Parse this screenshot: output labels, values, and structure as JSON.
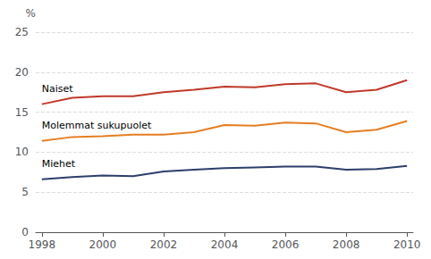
{
  "chart_data": {
    "type": "line",
    "ylabel": "%",
    "x": [
      1998,
      1999,
      2000,
      2001,
      2002,
      2003,
      2004,
      2005,
      2006,
      2007,
      2008,
      2009,
      2010
    ],
    "series": [
      {
        "name": "Naiset",
        "color": "#c0392b",
        "values": [
          16.0,
          16.8,
          17.0,
          17.0,
          17.5,
          17.8,
          18.2,
          18.1,
          18.5,
          18.6,
          17.5,
          17.8,
          19.0
        ]
      },
      {
        "name": "Molemmat sukupuolet",
        "color": "#e67e22",
        "values": [
          11.4,
          11.9,
          12.0,
          12.2,
          12.2,
          12.5,
          13.4,
          13.3,
          13.7,
          13.6,
          12.5,
          12.8,
          13.9
        ]
      },
      {
        "name": "Miehet",
        "color": "#2c3e6b",
        "values": [
          6.6,
          6.9,
          7.1,
          7.0,
          7.6,
          7.8,
          8.0,
          8.1,
          8.2,
          8.2,
          7.8,
          7.9,
          8.3
        ]
      }
    ],
    "xlim": [
      1997.8,
      2010.2
    ],
    "xticks": [
      1998,
      2000,
      2002,
      2004,
      2006,
      2008,
      2010
    ],
    "ylim": [
      0,
      25
    ],
    "yticks": [
      0,
      5,
      10,
      15,
      20,
      25
    ],
    "grid": true
  }
}
